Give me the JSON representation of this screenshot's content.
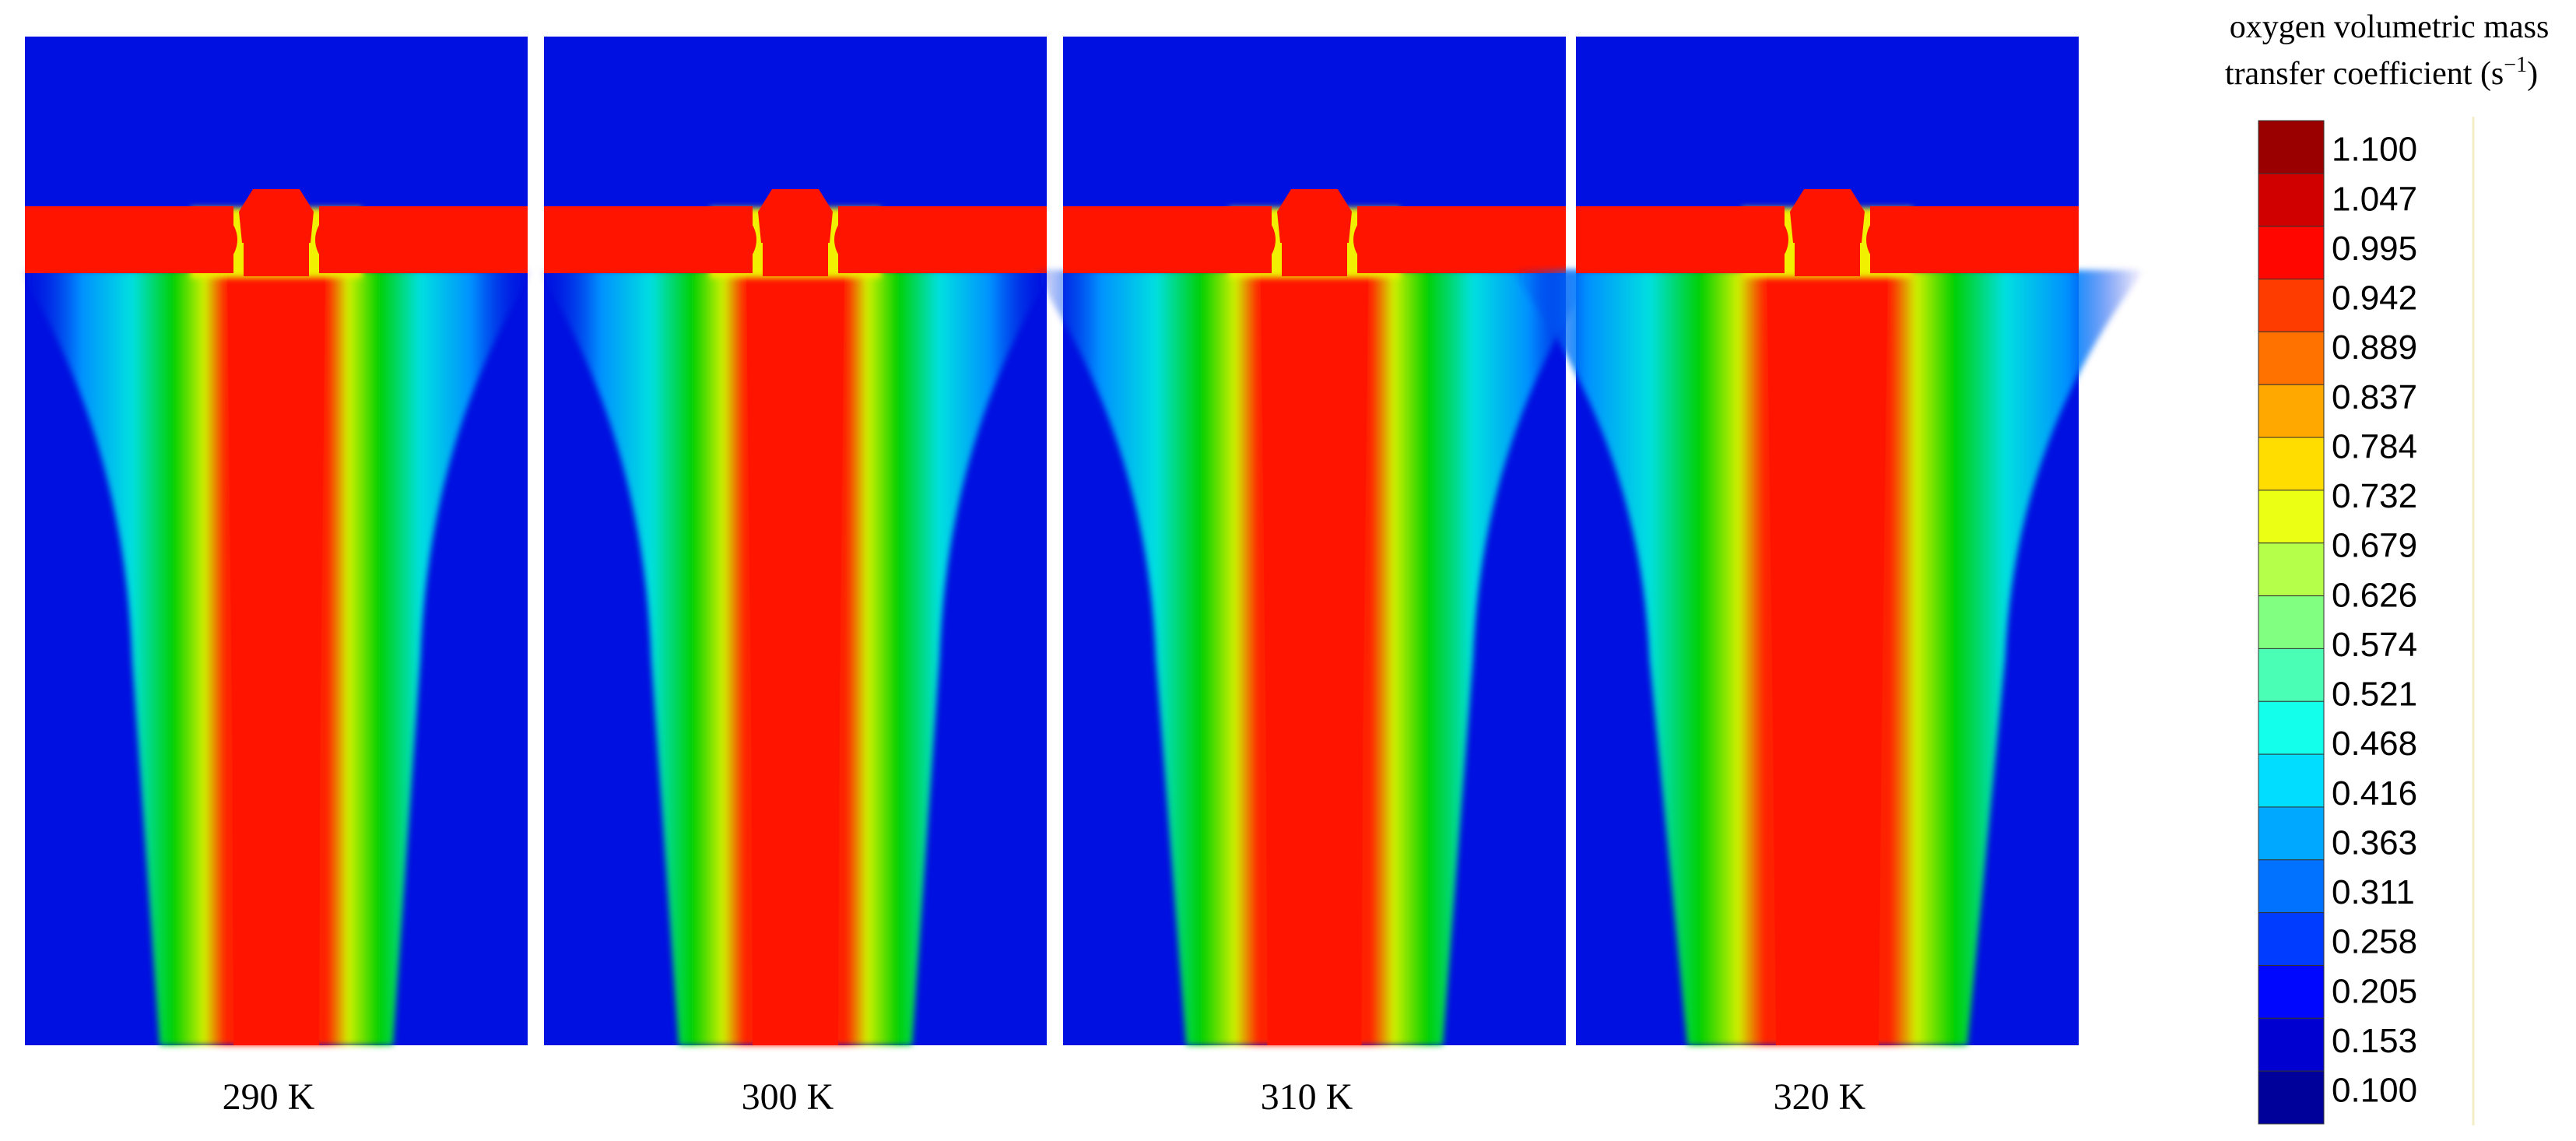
{
  "panels": [
    {
      "label": "290 K"
    },
    {
      "label": "300 K"
    },
    {
      "label": "310 K"
    },
    {
      "label": "320 K"
    }
  ],
  "colorbar": {
    "title_line1": "oxygen volumetric mass",
    "title_line2": "transfer coefficient (s",
    "title_exponent": "−1",
    "title_end": ")",
    "ticks": [
      "1.100",
      "1.047",
      "0.995",
      "0.942",
      "0.889",
      "0.837",
      "0.784",
      "0.732",
      "0.679",
      "0.626",
      "0.574",
      "0.521",
      "0.468",
      "0.416",
      "0.363",
      "0.311",
      "0.258",
      "0.205",
      "0.153",
      "0.100"
    ]
  }
}
